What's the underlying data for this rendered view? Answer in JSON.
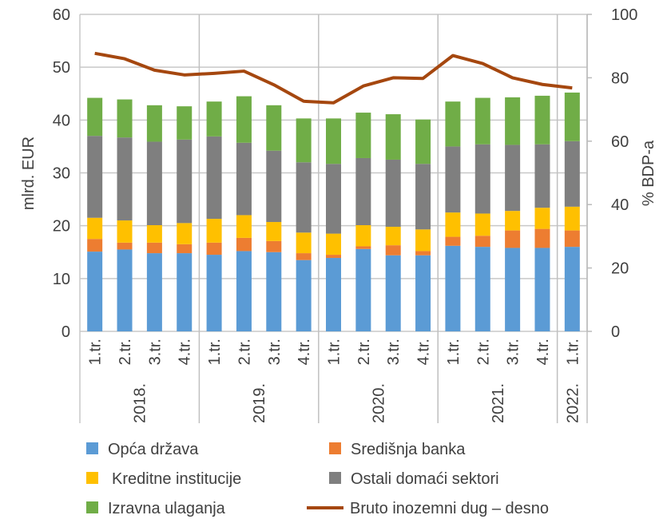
{
  "chart_data": {
    "type": "bar",
    "stacked": true,
    "categories": [
      "1.tr.",
      "2.tr.",
      "3.tr.",
      "4.tr.",
      "1.tr.",
      "2.tr.",
      "3.tr.",
      "4.tr.",
      "1.tr.",
      "2.tr.",
      "3.tr.",
      "4.tr.",
      "1.tr.",
      "2.tr.",
      "3.tr.",
      "4.tr.",
      "1.tr."
    ],
    "groups": [
      {
        "label": "2018.",
        "count": 4
      },
      {
        "label": "2019.",
        "count": 4
      },
      {
        "label": "2020.",
        "count": 4
      },
      {
        "label": "2021.",
        "count": 4
      },
      {
        "label": "2022.",
        "count": 1
      }
    ],
    "series": [
      {
        "name": "Opća država",
        "color": "#5B9BD5",
        "values": [
          15.1,
          15.5,
          14.8,
          14.8,
          14.5,
          15.2,
          15.0,
          13.5,
          13.9,
          15.6,
          14.4,
          14.4,
          16.2,
          16.0,
          15.8,
          15.8,
          16.0
        ]
      },
      {
        "name": "Središnja banka",
        "color": "#ED7D31",
        "values": [
          2.4,
          1.3,
          2.0,
          1.7,
          2.3,
          2.5,
          2.1,
          1.3,
          0.6,
          0.5,
          1.9,
          0.8,
          1.7,
          2.1,
          3.3,
          3.6,
          3.1
        ]
      },
      {
        "name": "Kreditne institucije",
        "color": "#FFC000",
        "values": [
          4.0,
          4.2,
          3.3,
          4.0,
          4.5,
          4.3,
          3.6,
          3.9,
          4.0,
          4.0,
          3.5,
          4.1,
          4.6,
          4.2,
          3.7,
          4.0,
          4.5
        ]
      },
      {
        "name": "Ostali domaći sektori",
        "color": "#7F7F7F",
        "values": [
          15.5,
          15.7,
          15.8,
          15.8,
          15.6,
          13.7,
          13.5,
          13.3,
          13.2,
          12.7,
          12.7,
          12.4,
          12.5,
          13.1,
          12.5,
          12.0,
          12.4
        ]
      },
      {
        "name": "Izravna ulaganja",
        "color": "#70AD47",
        "values": [
          7.2,
          7.2,
          6.9,
          6.3,
          6.6,
          8.8,
          8.6,
          8.3,
          8.6,
          8.6,
          8.6,
          8.4,
          8.5,
          8.8,
          9.0,
          9.2,
          9.2
        ]
      }
    ],
    "line_series": {
      "name": "Bruto inozemni dug – desno",
      "color": "#A5470F",
      "axis": "right",
      "values": [
        87.7,
        86.0,
        82.4,
        80.9,
        81.4,
        82.1,
        77.8,
        72.6,
        72.1,
        77.4,
        80.0,
        79.8,
        87.0,
        84.5,
        80.0,
        77.9,
        76.8
      ]
    },
    "ylabel": "mlrd. EUR",
    "ylim": [
      0,
      60
    ],
    "yticks": [
      "0",
      "10",
      "20",
      "30",
      "40",
      "50",
      "60"
    ],
    "y2label": "% BDP-a",
    "y2lim": [
      0,
      100
    ],
    "y2ticks": [
      "0",
      "20",
      "40",
      "60",
      "80",
      "100"
    ],
    "grid": true,
    "legend": "bottom"
  }
}
